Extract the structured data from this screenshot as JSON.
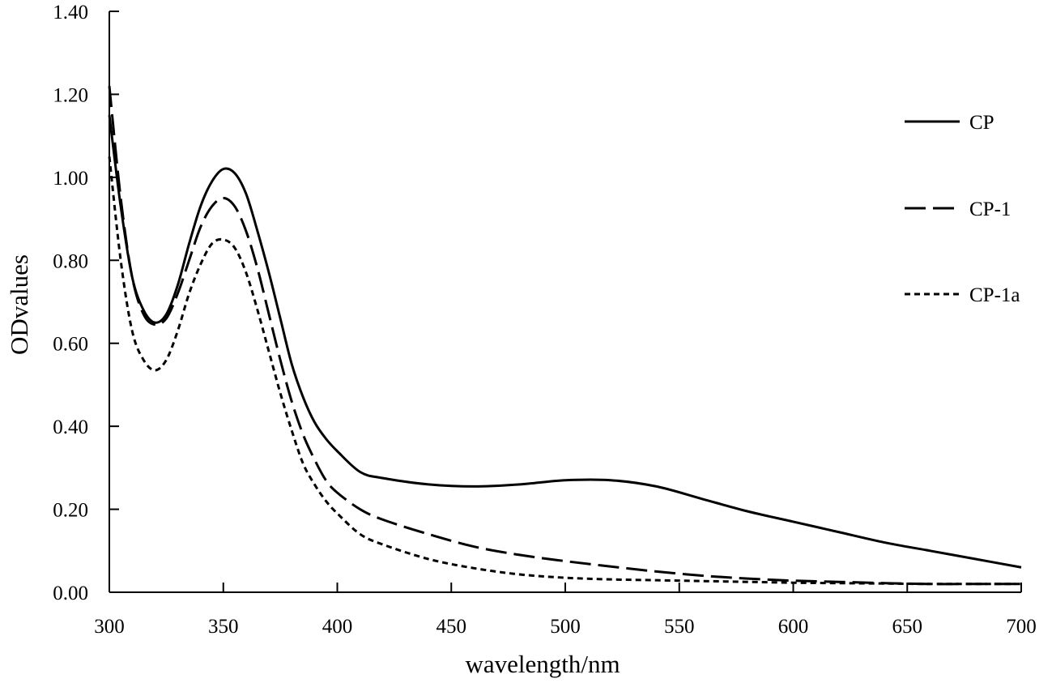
{
  "chart_data": {
    "type": "line",
    "title": "",
    "xlabel": "wavelength/nm",
    "ylabel": "ODvalues",
    "xlim": [
      300,
      700
    ],
    "ylim": [
      0,
      1.4
    ],
    "xticks": [
      "300",
      "350",
      "400",
      "450",
      "500",
      "550",
      "600",
      "650",
      "700"
    ],
    "yticks": [
      "0.00",
      "0.20",
      "0.40",
      "0.60",
      "0.80",
      "1.00",
      "1.20",
      "1.40"
    ],
    "grid": false,
    "legend_position": "right",
    "legend": [
      "CP",
      "CP-1",
      "CP-1a"
    ],
    "series": [
      {
        "name": "CP",
        "line_style": "solid",
        "color": "#000000",
        "x": [
          300,
          305,
          310,
          315,
          320,
          325,
          330,
          335,
          340,
          345,
          350,
          355,
          360,
          365,
          370,
          375,
          380,
          385,
          390,
          395,
          400,
          410,
          420,
          440,
          460,
          480,
          500,
          520,
          540,
          560,
          580,
          600,
          620,
          640,
          660,
          680,
          700
        ],
        "y": [
          1.15,
          0.93,
          0.76,
          0.68,
          0.65,
          0.67,
          0.74,
          0.84,
          0.93,
          0.99,
          1.02,
          1.01,
          0.96,
          0.87,
          0.77,
          0.66,
          0.55,
          0.47,
          0.41,
          0.37,
          0.34,
          0.29,
          0.275,
          0.26,
          0.255,
          0.26,
          0.27,
          0.27,
          0.255,
          0.225,
          0.195,
          0.17,
          0.145,
          0.12,
          0.1,
          0.08,
          0.06
        ]
      },
      {
        "name": "CP-1",
        "line_style": "dashed",
        "color": "#000000",
        "x": [
          300,
          305,
          310,
          315,
          320,
          325,
          330,
          335,
          340,
          345,
          350,
          355,
          360,
          365,
          370,
          375,
          380,
          385,
          390,
          395,
          400,
          410,
          420,
          440,
          460,
          480,
          500,
          520,
          540,
          560,
          580,
          600,
          620,
          640,
          660,
          680,
          700
        ],
        "y": [
          1.22,
          0.95,
          0.76,
          0.67,
          0.645,
          0.66,
          0.72,
          0.8,
          0.88,
          0.93,
          0.95,
          0.93,
          0.87,
          0.78,
          0.67,
          0.56,
          0.46,
          0.38,
          0.32,
          0.27,
          0.24,
          0.2,
          0.175,
          0.14,
          0.11,
          0.09,
          0.075,
          0.062,
          0.05,
          0.04,
          0.033,
          0.028,
          0.025,
          0.022,
          0.02,
          0.02,
          0.02
        ]
      },
      {
        "name": "CP-1a",
        "line_style": "short-dashed",
        "color": "#000000",
        "x": [
          300,
          305,
          310,
          315,
          320,
          325,
          330,
          335,
          340,
          345,
          350,
          355,
          360,
          365,
          370,
          375,
          380,
          385,
          390,
          395,
          400,
          410,
          420,
          440,
          460,
          480,
          500,
          520,
          540,
          560,
          580,
          600,
          620,
          640,
          660,
          680,
          700
        ],
        "y": [
          1.05,
          0.8,
          0.63,
          0.56,
          0.535,
          0.56,
          0.63,
          0.72,
          0.79,
          0.84,
          0.85,
          0.83,
          0.77,
          0.68,
          0.58,
          0.48,
          0.39,
          0.31,
          0.26,
          0.22,
          0.19,
          0.14,
          0.115,
          0.08,
          0.058,
          0.043,
          0.035,
          0.031,
          0.029,
          0.027,
          0.025,
          0.023,
          0.022,
          0.021,
          0.02,
          0.02,
          0.02
        ]
      }
    ]
  }
}
